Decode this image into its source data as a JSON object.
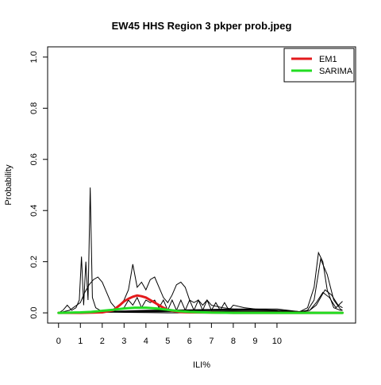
{
  "chart_data": {
    "type": "line",
    "title": "EW45 HHS Region 3 pkper prob.jpeg",
    "xlabel": "ILI%",
    "ylabel": "Probability",
    "xlim": [
      -0.5,
      13.6
    ],
    "ylim": [
      -0.04,
      1.04
    ],
    "x_ticks": [
      0,
      1,
      2,
      3,
      4,
      5,
      6,
      7,
      8,
      9,
      10
    ],
    "y_ticks": [
      0.0,
      0.2,
      0.4,
      0.6,
      0.8,
      1.0
    ],
    "x_tick_labels": [
      "0",
      "1",
      "2",
      "3",
      "4",
      "5",
      "6",
      "7",
      "8",
      "9",
      "10"
    ],
    "y_tick_labels": [
      "0.0",
      "0.2",
      "0.4",
      "0.6",
      "0.8",
      "1.0"
    ],
    "grid": false,
    "legend_position": "top-right",
    "legend": [
      {
        "name": "EM1",
        "color": "#e31a1c"
      },
      {
        "name": "SARIMA",
        "color": "#22dd22"
      }
    ],
    "series": [
      {
        "name": "EM1",
        "color": "#e31a1c",
        "line_width": 3,
        "dash": "none",
        "x": [
          0.0,
          1.0,
          2.0,
          2.5,
          2.8,
          3.0,
          3.2,
          3.4,
          3.6,
          3.8,
          4.0,
          4.2,
          4.4,
          4.6,
          4.8,
          5.0,
          5.2,
          5.5,
          6.0,
          7.0,
          8.0,
          9.0,
          10.0,
          11.0,
          12.0,
          13.0
        ],
        "values": [
          0.0,
          0.0,
          0.002,
          0.01,
          0.03,
          0.045,
          0.055,
          0.063,
          0.068,
          0.065,
          0.06,
          0.05,
          0.04,
          0.03,
          0.02,
          0.012,
          0.008,
          0.004,
          0.002,
          0.001,
          0.0,
          0.0,
          0.0,
          0.0,
          0.0,
          0.0
        ]
      },
      {
        "name": "SARIMA",
        "color": "#22dd22",
        "line_width": 3,
        "dash": "none",
        "x": [
          0.0,
          1.0,
          1.5,
          2.0,
          2.5,
          3.0,
          3.5,
          4.0,
          4.5,
          5.0,
          5.5,
          6.0,
          7.0,
          8.0,
          9.0,
          10.0,
          11.0,
          12.0,
          13.0
        ],
        "values": [
          0.0,
          0.002,
          0.004,
          0.008,
          0.012,
          0.017,
          0.02,
          0.02,
          0.017,
          0.012,
          0.007,
          0.004,
          0.001,
          0.0,
          0.0,
          0.0,
          0.0,
          0.0,
          0.0
        ]
      }
    ],
    "black_curves": [
      {
        "x": [
          0.0,
          0.2,
          0.4,
          0.6,
          0.8,
          0.95,
          1.05,
          1.15,
          1.25,
          1.35,
          1.45,
          1.55,
          1.7,
          1.9,
          2.2,
          2.6,
          3.0,
          4.0,
          5.0,
          6.0,
          7.0,
          8.0,
          9.0,
          10.0,
          11.0,
          12.0,
          13.0
        ],
        "values": [
          0.0,
          0.01,
          0.03,
          0.01,
          0.02,
          0.05,
          0.22,
          0.03,
          0.2,
          0.05,
          0.49,
          0.06,
          0.02,
          0.01,
          0.005,
          0.003,
          0.002,
          0.001,
          0.0,
          0.0,
          0.0,
          0.0,
          0.0,
          0.0,
          0.0,
          0.0,
          0.0
        ]
      },
      {
        "x": [
          0.0,
          0.5,
          1.0,
          1.2,
          1.4,
          1.6,
          1.8,
          2.0,
          2.2,
          2.4,
          2.6,
          2.8,
          3.0,
          3.2,
          3.4,
          3.6,
          3.8,
          4.0,
          4.2,
          4.4,
          4.6,
          4.8,
          5.0,
          5.2,
          5.4,
          5.6,
          5.8,
          6.0,
          6.2,
          6.4,
          6.6,
          6.8,
          7.0,
          7.5,
          8.0,
          9.0,
          10.0,
          11.0,
          12.0,
          13.0
        ],
        "values": [
          0.0,
          0.01,
          0.04,
          0.08,
          0.11,
          0.13,
          0.14,
          0.12,
          0.08,
          0.04,
          0.02,
          0.03,
          0.05,
          0.09,
          0.19,
          0.1,
          0.12,
          0.09,
          0.13,
          0.14,
          0.1,
          0.06,
          0.04,
          0.07,
          0.11,
          0.12,
          0.1,
          0.05,
          0.04,
          0.05,
          0.03,
          0.05,
          0.03,
          0.02,
          0.015,
          0.012,
          0.01,
          0.005,
          0.002,
          0.0
        ]
      },
      {
        "x": [
          0.0,
          1.0,
          2.0,
          3.0,
          3.2,
          3.4,
          3.6,
          3.8,
          4.0,
          4.2,
          4.4,
          4.6,
          4.8,
          5.0,
          5.2,
          5.4,
          5.6,
          5.8,
          6.0,
          6.2,
          6.4,
          6.6,
          6.8,
          7.0,
          7.2,
          7.4,
          7.6,
          7.8,
          8.0,
          8.5,
          9.0,
          10.0,
          11.0,
          12.0,
          13.0
        ],
        "values": [
          0.0,
          0.0,
          0.005,
          0.02,
          0.05,
          0.03,
          0.06,
          0.02,
          0.05,
          0.04,
          0.05,
          0.02,
          0.05,
          0.01,
          0.05,
          0.01,
          0.05,
          0.01,
          0.05,
          0.01,
          0.05,
          0.01,
          0.05,
          0.01,
          0.04,
          0.01,
          0.04,
          0.01,
          0.03,
          0.02,
          0.015,
          0.01,
          0.005,
          0.002,
          0.0
        ]
      },
      {
        "x": [
          0.0,
          2.0,
          4.0,
          6.0,
          8.0,
          9.0,
          10.0,
          10.5,
          11.0,
          11.5,
          11.8,
          12.0,
          12.2,
          12.5,
          12.8,
          13.0
        ],
        "values": [
          0.0,
          0.005,
          0.01,
          0.012,
          0.015,
          0.015,
          0.015,
          0.01,
          0.005,
          0.01,
          0.03,
          0.06,
          0.09,
          0.07,
          0.03,
          0.02
        ]
      },
      {
        "x": [
          0.0,
          2.0,
          4.0,
          6.0,
          8.0,
          9.0,
          10.0,
          10.5,
          11.0,
          11.4,
          11.7,
          11.9,
          12.1,
          12.3,
          12.6,
          12.9,
          13.0
        ],
        "values": [
          0.0,
          0.003,
          0.008,
          0.01,
          0.012,
          0.012,
          0.01,
          0.005,
          0.003,
          0.02,
          0.1,
          0.235,
          0.2,
          0.09,
          0.02,
          0.01,
          0.01
        ]
      },
      {
        "x": [
          0.0,
          2.0,
          4.0,
          6.0,
          8.0,
          10.0,
          10.5,
          11.0,
          11.4,
          11.7,
          12.0,
          12.3,
          12.6,
          12.9,
          13.0
        ],
        "values": [
          0.0,
          0.003,
          0.006,
          0.008,
          0.01,
          0.008,
          0.005,
          0.003,
          0.01,
          0.05,
          0.21,
          0.15,
          0.05,
          0.015,
          0.01
        ]
      },
      {
        "x": [
          0.0,
          2.0,
          4.0,
          6.0,
          8.0,
          10.0,
          11.0,
          11.5,
          11.8,
          12.1,
          12.4,
          12.7,
          13.0
        ],
        "values": [
          0.0,
          0.002,
          0.004,
          0.005,
          0.006,
          0.005,
          0.003,
          0.01,
          0.04,
          0.08,
          0.06,
          0.02,
          0.045
        ]
      }
    ]
  }
}
